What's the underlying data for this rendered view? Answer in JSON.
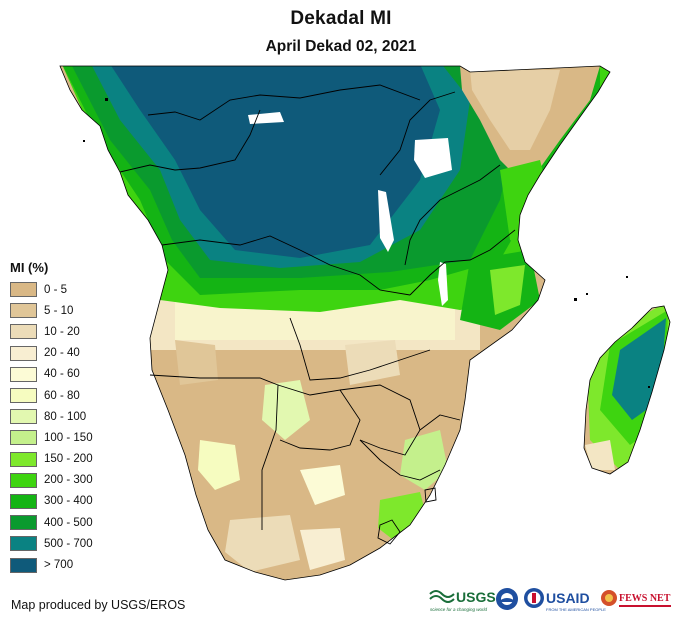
{
  "title": "Dekadal MI",
  "subtitle": "April Dekad 02, 2021",
  "legend": {
    "title": "MI (%)",
    "items": [
      {
        "label": "0 - 5",
        "color": "#d9b886"
      },
      {
        "label": "5 - 10",
        "color": "#e0c698"
      },
      {
        "label": "10 - 20",
        "color": "#ecdcb8"
      },
      {
        "label": "20 - 40",
        "color": "#f8eed2"
      },
      {
        "label": "40 - 60",
        "color": "#fcfbd6"
      },
      {
        "label": "60 - 80",
        "color": "#f6fcc0"
      },
      {
        "label": "80 - 100",
        "color": "#e2f8b0"
      },
      {
        "label": "100 - 150",
        "color": "#c4f08c"
      },
      {
        "label": "150 - 200",
        "color": "#7ee82c"
      },
      {
        "label": "200 - 300",
        "color": "#3ed410"
      },
      {
        "label": "300 - 400",
        "color": "#14b414"
      },
      {
        "label": "400 - 500",
        "color": "#0a9a2e"
      },
      {
        "label": "500 - 700",
        "color": "#0a8282"
      },
      {
        "label": "> 700",
        "color": "#0f5a7a"
      }
    ]
  },
  "credit": "Map produced by USGS/EROS",
  "logos": {
    "usgs": "USGS",
    "usgs_tagline": "science for a changing world",
    "usaid": "USAID",
    "usaid_tagline": "FROM THE AMERICAN PEOPLE",
    "fewsnet": "FEWS NET"
  },
  "colors": {
    "water": "#ffffff",
    "border": "#000000"
  }
}
